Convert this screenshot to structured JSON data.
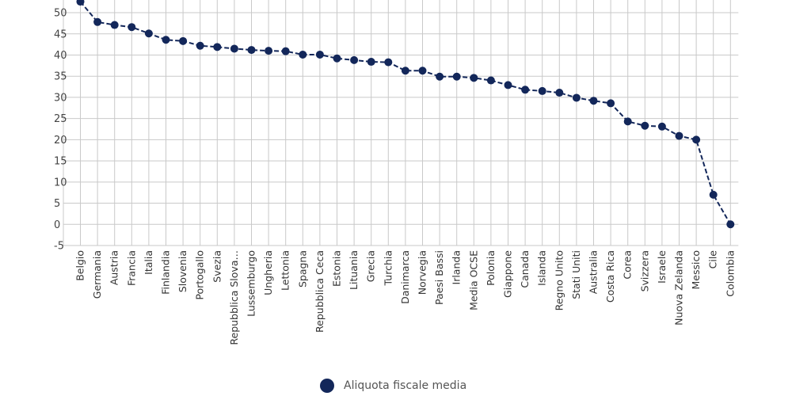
{
  "chart_data": {
    "type": "line",
    "categories": [
      "Belgio",
      "Germania",
      "Austria",
      "Francia",
      "Italia",
      "Finlandia",
      "Slovenia",
      "Portogallo",
      "Svezia",
      "Repubblica Slova…",
      "Lussemburgo",
      "Ungheria",
      "Lettonia",
      "Spagna",
      "Repubblica Ceca",
      "Estonia",
      "Lituania",
      "Grecia",
      "Turchia",
      "Danimarca",
      "Norvegia",
      "Paesi Bassi",
      "Irlanda",
      "Media OCSE",
      "Polonia",
      "Giappone",
      "Canada",
      "Islanda",
      "Regno Unito",
      "Stati Uniti",
      "Australia",
      "Costa Rica",
      "Corea",
      "Svizzera",
      "Israele",
      "Nuova Zelanda",
      "Messico",
      "Cile",
      "Colombia"
    ],
    "series": [
      {
        "name": "Aliquota fiscale media",
        "color": "#13275a",
        "values": [
          52.6,
          47.8,
          47.1,
          46.6,
          45.1,
          43.6,
          43.3,
          42.2,
          41.9,
          41.5,
          41.2,
          41.0,
          40.9,
          40.1,
          40.1,
          39.2,
          38.8,
          38.4,
          38.3,
          36.3,
          36.3,
          34.9,
          34.9,
          34.6,
          34.0,
          32.9,
          31.8,
          31.5,
          31.1,
          29.9,
          29.2,
          28.6,
          24.3,
          23.3,
          23.1,
          20.9,
          20.0,
          7.0,
          0.0
        ]
      }
    ],
    "y_ticks": [
      "-5",
      "0",
      "5",
      "10",
      "15",
      "20",
      "25",
      "30",
      "35",
      "40",
      "45",
      "50"
    ],
    "ylim": [
      -5,
      52.8
    ],
    "grid": true,
    "legend_position": "bottom-center"
  }
}
